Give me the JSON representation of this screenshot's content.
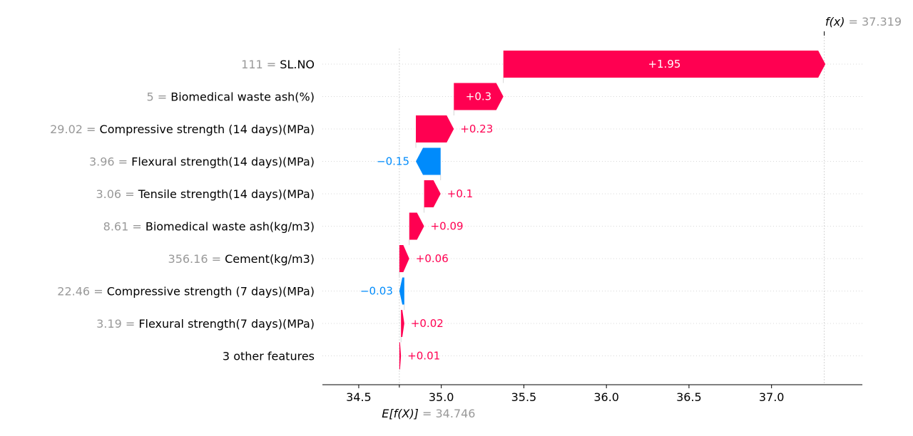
{
  "chart_data": {
    "type": "waterfall",
    "base_value": 34.746,
    "final_value": 37.319,
    "base_label": {
      "prefix": "E[f(X)]",
      "eq": " = ",
      "value": "34.746"
    },
    "final_label": {
      "prefix": "f(x)",
      "eq": " = ",
      "value": "37.319"
    },
    "xlim": [
      34.28,
      37.55
    ],
    "xticks": [
      34.5,
      35.0,
      35.5,
      36.0,
      36.5,
      37.0
    ],
    "xtick_labels": [
      "34.5",
      "35.0",
      "35.5",
      "36.0",
      "36.5",
      "37.0"
    ],
    "features": [
      {
        "value": "111",
        "name": "SL.NO",
        "contribution": 1.95,
        "label": "+1.95"
      },
      {
        "value": "5",
        "name": "Biomedical waste ash(%)",
        "contribution": 0.3,
        "label": "+0.3"
      },
      {
        "value": "29.02",
        "name": "Compressive strength (14 days)(MPa)",
        "contribution": 0.23,
        "label": "+0.23"
      },
      {
        "value": "3.96",
        "name": "Flexural strength(14 days)(MPa)",
        "contribution": -0.15,
        "label": "−0.15"
      },
      {
        "value": "3.06",
        "name": "Tensile strength(14 days)(MPa)",
        "contribution": 0.1,
        "label": "+0.1"
      },
      {
        "value": "8.61",
        "name": "Biomedical waste ash(kg/m3)",
        "contribution": 0.09,
        "label": "+0.09"
      },
      {
        "value": "356.16",
        "name": "Cement(kg/m3)",
        "contribution": 0.06,
        "label": "+0.06"
      },
      {
        "value": "22.46",
        "name": "Compressive strength (7 days)(MPa)",
        "contribution": -0.03,
        "label": "−0.03"
      },
      {
        "value": "3.19",
        "name": "Flexural strength(7 days)(MPa)",
        "contribution": 0.02,
        "label": "+0.02"
      },
      {
        "value": "",
        "name": "3 other features",
        "contribution": 0.01,
        "label": "+0.01"
      }
    ],
    "colors": {
      "positive": "#ff0051",
      "negative": "#008bfb",
      "axis": "#000000",
      "grid": "#cccccc",
      "muted": "#999999"
    }
  }
}
